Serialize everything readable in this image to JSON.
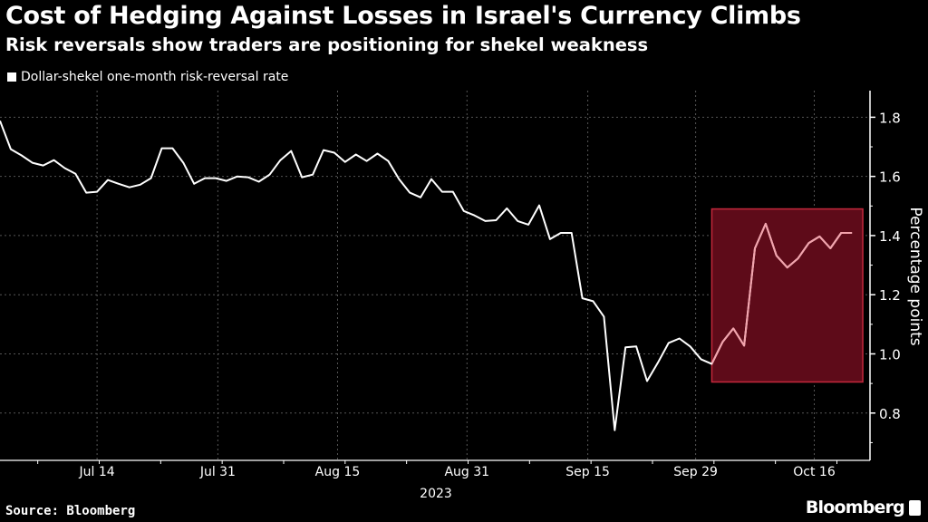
{
  "title": "Cost of Hedging Against Losses in Israel's Currency Climbs",
  "subtitle": "Risk reversals show traders are positioning for shekel weakness",
  "source": "Source: Bloomberg",
  "brand": "Bloomberg",
  "chart_data": {
    "type": "line",
    "title": "Cost of Hedging Against Losses in Israel's Currency Climbs",
    "xlabel": "2023",
    "ylabel": "Percentage points",
    "x_unit": "trading-day index (starting early July 2023)",
    "x_ticks": [
      {
        "label": "Jul 14",
        "x": 9
      },
      {
        "label": "Jul 31",
        "x": 20.2
      },
      {
        "label": "Aug 15",
        "x": 31.3
      },
      {
        "label": "Aug 31",
        "x": 43.3
      },
      {
        "label": "Sep 15",
        "x": 54.5
      },
      {
        "label": "Sep 29",
        "x": 64.5
      },
      {
        "label": "Oct 16",
        "x": 75.5
      }
    ],
    "y_ticks": [
      0.8,
      1.0,
      1.2,
      1.4,
      1.6,
      1.8
    ],
    "y_tick_labels": [
      "0.8",
      "1.0",
      "1.2",
      "1.4",
      "1.6",
      "1.8"
    ],
    "ylim": [
      0.64,
      1.89
    ],
    "xlim": [
      0,
      80.5
    ],
    "grid": true,
    "legend_position": "top-left",
    "series": [
      {
        "name": "Dollar-shekel one-month risk-reversal rate",
        "color": "#ffffff",
        "values": [
          1.788,
          1.692,
          1.671,
          1.646,
          1.637,
          1.655,
          1.628,
          1.609,
          1.545,
          1.548,
          1.588,
          1.575,
          1.563,
          1.572,
          1.594,
          1.695,
          1.695,
          1.646,
          1.575,
          1.594,
          1.594,
          1.585,
          1.6,
          1.597,
          1.582,
          1.606,
          1.655,
          1.686,
          1.597,
          1.606,
          1.689,
          1.68,
          1.649,
          1.674,
          1.652,
          1.677,
          1.652,
          1.591,
          1.545,
          1.529,
          1.591,
          1.548,
          1.548,
          1.483,
          1.468,
          1.449,
          1.452,
          1.492,
          1.449,
          1.437,
          1.502,
          1.388,
          1.409,
          1.409,
          1.188,
          1.178,
          1.126,
          0.742,
          1.022,
          1.025,
          0.908,
          0.97,
          1.037,
          1.052,
          1.025,
          0.982,
          0.966,
          1.04,
          1.086,
          1.028,
          1.357,
          1.44,
          1.332,
          1.292,
          1.323,
          1.375,
          1.397,
          1.357,
          1.409,
          1.409
        ]
      }
    ],
    "highlight": {
      "x_range": [
        66,
        80
      ],
      "y_range": [
        0.905,
        1.49
      ],
      "fill": "#5e0b19",
      "stroke": "#c4283c",
      "line_color": "#f3a3ac"
    }
  }
}
